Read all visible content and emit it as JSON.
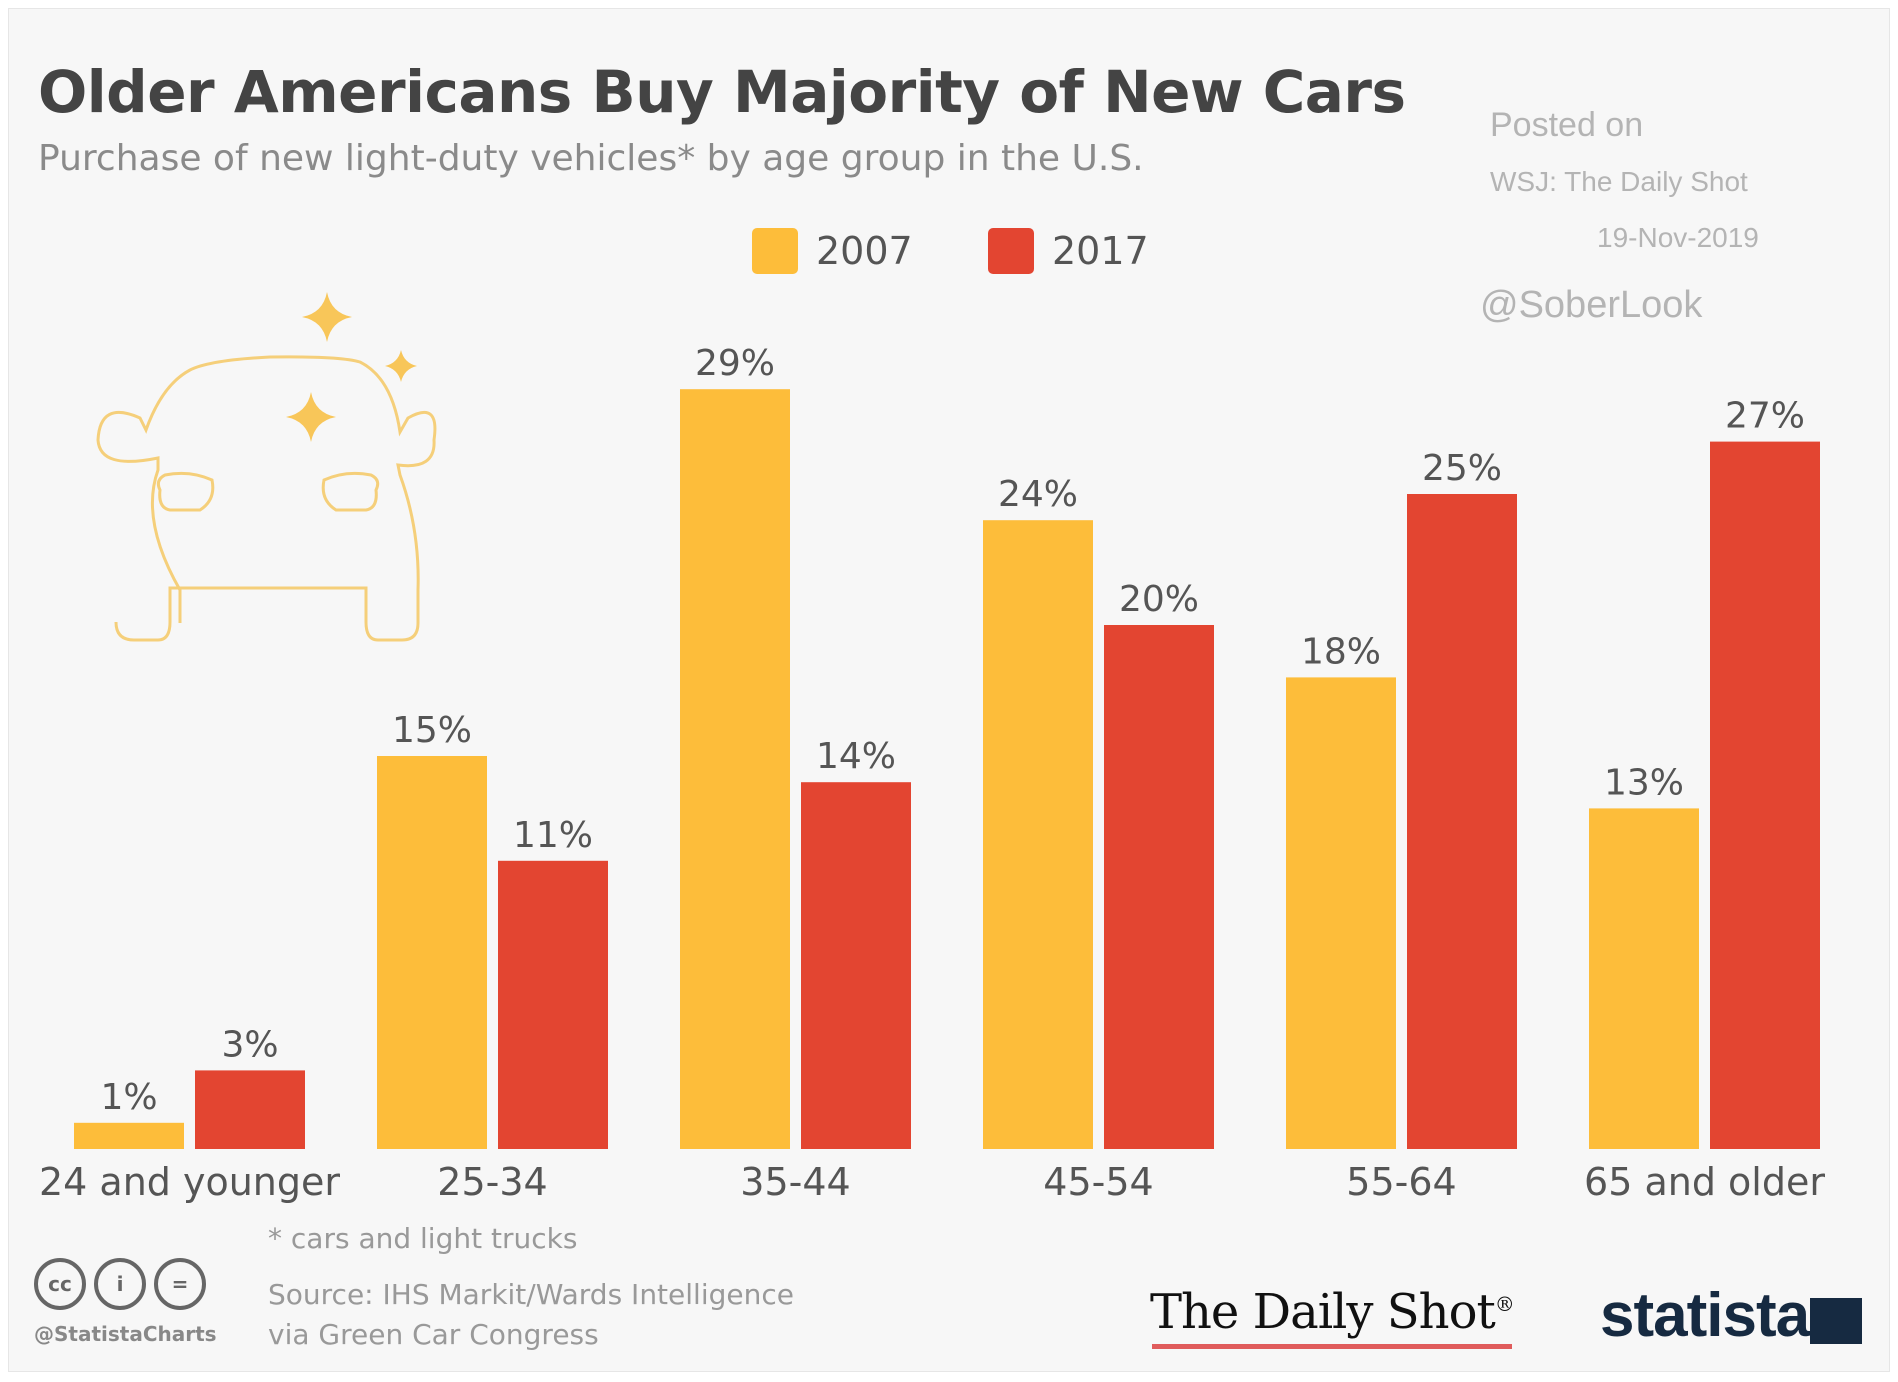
{
  "header": {
    "title": "Older Americans Buy Majority of New Cars",
    "subtitle": "Purchase of new light-duty vehicles* by age group in the U.S."
  },
  "posted": {
    "line1": "Posted on",
    "line2": "WSJ: The Daily Shot",
    "line3": "19-Nov-2019",
    "handle": "@SoberLook"
  },
  "icons": {
    "illustration": "car-with-sparkles-icon",
    "license": [
      "cc-icon",
      "attribution-icon",
      "no-derivatives-icon"
    ]
  },
  "colors": {
    "2007": "#fdbd3a",
    "2017": "#e34531",
    "text": "#555555",
    "illustration": "#f5cf7a"
  },
  "chart_data": {
    "type": "bar",
    "title": "Older Americans Buy Majority of New Cars",
    "subtitle": "Purchase of new light-duty vehicles* by age group in the U.S.",
    "xlabel": "",
    "ylabel": "",
    "categories": [
      "24 and younger",
      "25-34",
      "35-44",
      "45-54",
      "55-64",
      "65 and older"
    ],
    "series": [
      {
        "name": "2007",
        "values": [
          1,
          15,
          29,
          24,
          18,
          13
        ],
        "labels": [
          "1%",
          "15%",
          "29%",
          "24%",
          "18%",
          "13%"
        ]
      },
      {
        "name": "2017",
        "values": [
          3,
          11,
          14,
          20,
          25,
          27
        ],
        "labels": [
          "3%",
          "11%",
          "14%",
          "20%",
          "25%",
          "27%"
        ]
      }
    ],
    "ylim": [
      0,
      29
    ],
    "unit": "%",
    "grid": false,
    "legend": "top-center"
  },
  "footer": {
    "footnote": "* cars and light trucks",
    "source_line1": "Source: IHS Markit/Wards Intelligence",
    "source_line2": "via Green Car Congress",
    "statista_handle": "@StatistaCharts",
    "cc_labels": [
      "cc",
      "i",
      "="
    ],
    "dailyshot_logo": "The Daily Shot",
    "dailyshot_mark": "®",
    "statista_logo": "statista"
  }
}
